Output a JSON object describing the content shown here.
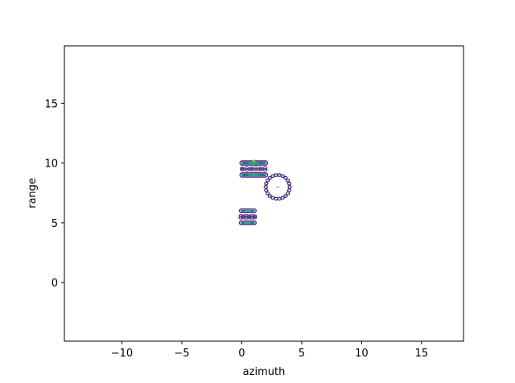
{
  "chart_data": {
    "type": "contour",
    "title": "",
    "xlabel": "azimuth",
    "ylabel": "range",
    "xlim": [
      -14.8,
      18.5
    ],
    "ylim": [
      -4.9,
      19.8
    ],
    "xticks": [
      -10,
      -5,
      0,
      5,
      10,
      15
    ],
    "yticks": [
      0,
      5,
      10,
      15
    ],
    "xtick_labels": [
      "−10",
      "−5",
      "0",
      "5",
      "10",
      "15"
    ],
    "ytick_labels": [
      "0",
      "5",
      "10",
      "15"
    ],
    "grid": false,
    "colors": {
      "level_low": "#472c7a",
      "level_mid": "#2c728e",
      "level_high": "#27ad81",
      "level_peak": "#5ec962"
    },
    "targets": [
      {
        "shape": "bar",
        "x": 1.0,
        "y": 10.0,
        "width": 2.3,
        "height": 0.35,
        "level": "mid"
      },
      {
        "shape": "bar",
        "x": 1.0,
        "y": 9.0,
        "width": 2.3,
        "height": 0.35,
        "level": "mid"
      },
      {
        "shape": "bar",
        "x": 0.5,
        "y": 6.0,
        "width": 1.4,
        "height": 0.3,
        "level": "mid"
      },
      {
        "shape": "bar",
        "x": 0.5,
        "y": 5.0,
        "width": 1.4,
        "height": 0.3,
        "level": "mid"
      },
      {
        "shape": "ring",
        "x": 3.0,
        "y": 8.0,
        "radius": 1.0,
        "level": "low"
      }
    ]
  }
}
